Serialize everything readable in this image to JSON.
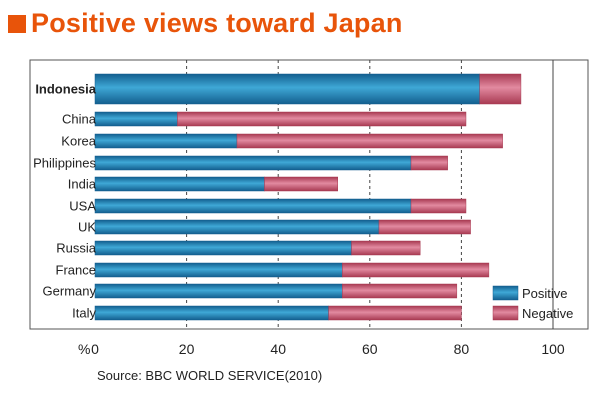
{
  "title": "Positive views toward Japan",
  "source": "Source: BBC WORLD SERVICE(2010)",
  "chart_data": {
    "type": "bar",
    "orientation": "horizontal",
    "stacked": true,
    "categories": [
      "Indonesia",
      "China",
      "Korea",
      "Philippines",
      "India",
      "USA",
      "UK",
      "Russia",
      "France",
      "Germany",
      "Italy"
    ],
    "highlighted_category": "Indonesia",
    "series": [
      {
        "name": "Positive",
        "color": "#1e6fa3",
        "values": [
          84,
          18,
          31,
          69,
          37,
          69,
          62,
          56,
          54,
          54,
          51
        ]
      },
      {
        "name": "Negative",
        "color": "#c44a62",
        "values": [
          9,
          63,
          58,
          8,
          16,
          12,
          20,
          15,
          32,
          25,
          29
        ]
      }
    ],
    "x_tick_labels": [
      "0",
      "20",
      "40",
      "60",
      "80",
      "100"
    ],
    "xlim": [
      0,
      100
    ],
    "xlabel": "%",
    "ylabel": "",
    "grid": "vertical dashed",
    "legend_position": "bottom-right"
  }
}
